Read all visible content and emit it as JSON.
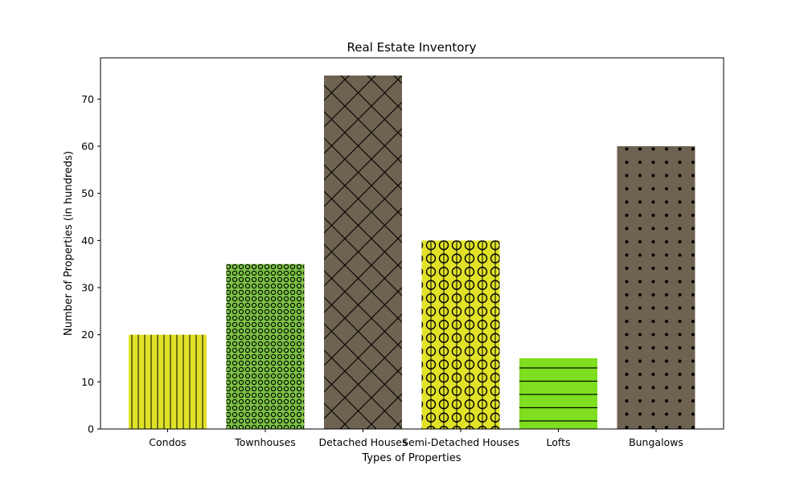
{
  "chart_data": {
    "type": "bar",
    "title": "Real Estate Inventory",
    "xlabel": "Types of Properties",
    "ylabel": "Number of Properties (in hundreds)",
    "categories": [
      "Condos",
      "Townhouses",
      "Detached Houses",
      "Semi-Detached Houses",
      "Lofts",
      "Bungalows"
    ],
    "values": [
      20,
      35,
      75,
      40,
      15,
      60
    ],
    "colors": [
      "#e1e228",
      "#7bc143",
      "#6e6250",
      "#e1e228",
      "#7ede1f",
      "#6e6250"
    ],
    "hatches": [
      "vertical",
      "small-circles",
      "diamond-cross",
      "circles-vertical",
      "horizontal",
      "dots"
    ],
    "ylim": [
      0,
      78.75
    ],
    "yticks": [
      0,
      10,
      20,
      30,
      40,
      50,
      60,
      70
    ],
    "grid": false,
    "legend": "none"
  }
}
